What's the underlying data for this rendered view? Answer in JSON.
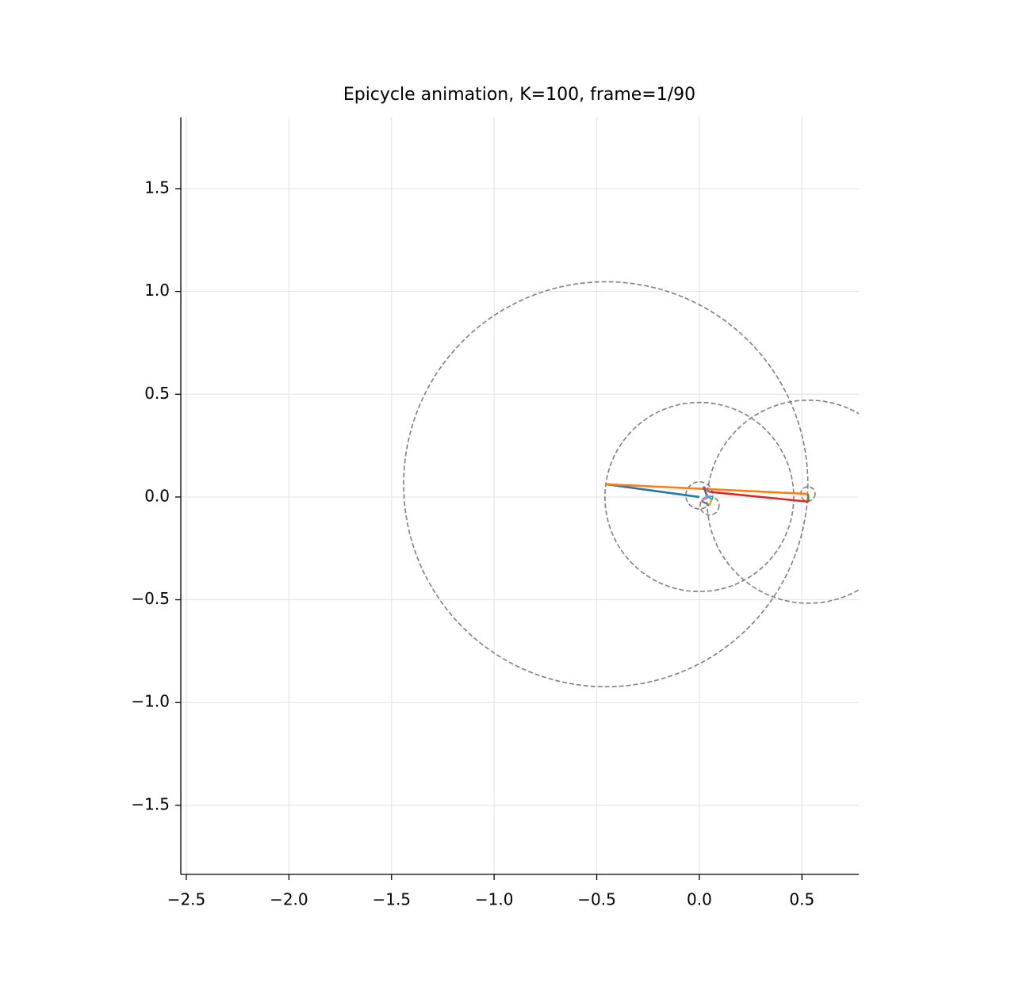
{
  "chart_data": {
    "type": "epicycle",
    "title": "Epicycle animation, K=100, frame=1/90",
    "xlim": [
      -2.527,
      0.777
    ],
    "ylim": [
      -1.836,
      1.847
    ],
    "xticks": [
      {
        "value": -2.5,
        "label": "−2.5"
      },
      {
        "value": -2.0,
        "label": "−2.0"
      },
      {
        "value": -1.5,
        "label": "−1.5"
      },
      {
        "value": -1.0,
        "label": "−1.0"
      },
      {
        "value": -0.5,
        "label": "−0.5"
      },
      {
        "value": 0.0,
        "label": "0.0"
      },
      0.5
    ],
    "yticks": [
      {
        "value": -1.5,
        "label": "−1.5"
      },
      {
        "value": -1.0,
        "label": "−1.0"
      },
      {
        "value": -0.5,
        "label": "−0.5"
      },
      {
        "value": 0.0,
        "label": "0.0"
      },
      0.5,
      {
        "value": 1.0,
        "label": "1.0"
      },
      1.5
    ],
    "grid": true,
    "circle_color": "#7f7f7f",
    "circles": [
      {
        "cx": 0,
        "cy": 0,
        "r": 0.46
      },
      {
        "cx": -0.456,
        "cy": 0.062,
        "r": 0.985
      },
      {
        "cx": 0.529,
        "cy": 0.015,
        "r": 0.035
      },
      {
        "cx": 0.532,
        "cy": -0.023,
        "r": 0.494
      },
      {
        "cx": 0.0,
        "cy": 0.008,
        "r": 0.066
      },
      {
        "cx": 0.05,
        "cy": -0.042,
        "r": 0.046
      }
    ],
    "segments": [
      {
        "color": "#1f77b4",
        "x": [
          0,
          -0.456
        ],
        "y": [
          0,
          0.062
        ]
      },
      {
        "color": "#ff7f0e",
        "x": [
          -0.456,
          0.529
        ],
        "y": [
          0.062,
          0.015
        ]
      },
      {
        "color": "#2ca02c",
        "x": [
          0.529,
          0.532
        ],
        "y": [
          0.015,
          -0.023
        ]
      },
      {
        "color": "#d62728",
        "x": [
          0.532,
          0.05
        ],
        "y": [
          -0.023,
          0.025
        ]
      },
      {
        "color": "#9467bd",
        "x": [
          0.05,
          0.02
        ],
        "y": [
          0.025,
          0.05
        ]
      },
      {
        "color": "#8c564b",
        "x": [
          0.02,
          0.04
        ],
        "y": [
          0.05,
          0.0
        ]
      },
      {
        "color": "#e377c2",
        "x": [
          0.04,
          0.01
        ],
        "y": [
          0.0,
          -0.02
        ]
      },
      {
        "color": "#7f7f7f",
        "x": [
          0.01,
          0.05
        ],
        "y": [
          -0.02,
          -0.04
        ]
      },
      {
        "color": "#bcbd22",
        "x": [
          0.05,
          0.06
        ],
        "y": [
          -0.04,
          -0.01
        ]
      },
      {
        "color": "#17becf",
        "x": [
          0.06,
          0.03
        ],
        "y": [
          -0.01,
          0.01
        ]
      }
    ]
  }
}
